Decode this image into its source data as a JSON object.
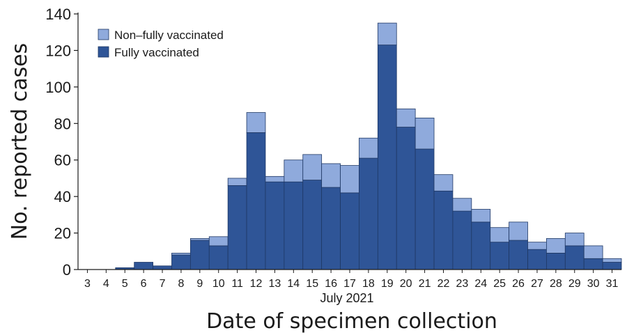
{
  "chart_data": {
    "type": "bar",
    "stacked": true,
    "categories": [
      "3",
      "4",
      "5",
      "6",
      "7",
      "8",
      "9",
      "10",
      "11",
      "12",
      "13",
      "14",
      "15",
      "16",
      "17",
      "18",
      "19",
      "20",
      "21",
      "22",
      "23",
      "24",
      "25",
      "26",
      "27",
      "28",
      "29",
      "30",
      "31"
    ],
    "series": [
      {
        "name": "Fully vaccinated",
        "color": "#2f5597",
        "values": [
          0,
          0,
          1,
          4,
          2,
          8,
          16,
          13,
          46,
          75,
          48,
          48,
          49,
          45,
          42,
          61,
          123,
          78,
          66,
          43,
          32,
          26,
          15,
          16,
          11,
          9,
          13,
          6,
          4
        ]
      },
      {
        "name": "Non–fully vaccinated",
        "color": "#8faadc",
        "values": [
          0,
          0,
          0,
          0,
          0,
          1,
          1,
          5,
          4,
          11,
          3,
          12,
          14,
          13,
          15,
          11,
          12,
          10,
          17,
          9,
          7,
          7,
          8,
          10,
          4,
          8,
          7,
          7,
          2
        ]
      }
    ],
    "legend_order": [
      "Non–fully vaccinated",
      "Fully vaccinated"
    ],
    "legend_position": "top-left",
    "ylim": [
      0,
      140
    ],
    "yticks": [
      0,
      20,
      40,
      60,
      80,
      100,
      120,
      140
    ],
    "ylabel": "No. reported cases",
    "xlabel": "Date of specimen collection",
    "xsublabel": "July 2021",
    "grid": false
  }
}
